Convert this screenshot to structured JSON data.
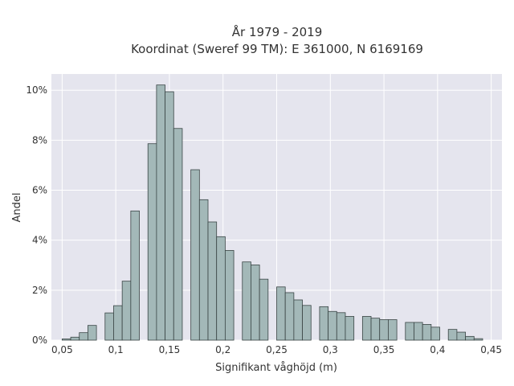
{
  "chart_data": {
    "type": "bar",
    "title": [
      "År 1979 - 2019",
      "Koordinat (Sweref 99 TM): E 361000, N 6169169"
    ],
    "xlabel": "Signifikant våghöjd (m)",
    "ylabel": "Andel",
    "xlim": [
      0.04,
      0.46
    ],
    "ylim": [
      0,
      0.1065
    ],
    "bin_width": 0.008,
    "x_ticks": [
      0.05,
      0.1,
      0.15,
      0.2,
      0.25,
      0.3,
      0.35,
      0.4,
      0.45
    ],
    "x_tick_labels": [
      "0,05",
      "0,1",
      "0,15",
      "0,2",
      "0,25",
      "0,3",
      "0,35",
      "0,4",
      "0,45"
    ],
    "y_ticks": [
      0,
      0.02,
      0.04,
      0.06,
      0.08,
      0.1
    ],
    "y_tick_labels": [
      "0%",
      "2%",
      "4%",
      "6%",
      "8%",
      "10%"
    ],
    "grid": true,
    "colors": {
      "bar_fill": "#a3b8b8",
      "bar_edge": "#3a4545",
      "plot_bg": "#e5e5ee",
      "grid": "#ffffff"
    },
    "bins": [
      {
        "x": 0.054,
        "y": 0.0005
      },
      {
        "x": 0.062,
        "y": 0.0012
      },
      {
        "x": 0.07,
        "y": 0.003
      },
      {
        "x": 0.078,
        "y": 0.0059
      },
      {
        "x": 0.094,
        "y": 0.0109
      },
      {
        "x": 0.102,
        "y": 0.0138
      },
      {
        "x": 0.11,
        "y": 0.0236
      },
      {
        "x": 0.118,
        "y": 0.0517
      },
      {
        "x": 0.134,
        "y": 0.0786
      },
      {
        "x": 0.142,
        "y": 0.1021
      },
      {
        "x": 0.15,
        "y": 0.0994
      },
      {
        "x": 0.158,
        "y": 0.0847
      },
      {
        "x": 0.174,
        "y": 0.0682
      },
      {
        "x": 0.182,
        "y": 0.0562
      },
      {
        "x": 0.19,
        "y": 0.0473
      },
      {
        "x": 0.198,
        "y": 0.0414
      },
      {
        "x": 0.206,
        "y": 0.0359
      },
      {
        "x": 0.222,
        "y": 0.0313
      },
      {
        "x": 0.23,
        "y": 0.0301
      },
      {
        "x": 0.238,
        "y": 0.0244
      },
      {
        "x": 0.254,
        "y": 0.0213
      },
      {
        "x": 0.262,
        "y": 0.019
      },
      {
        "x": 0.27,
        "y": 0.0161
      },
      {
        "x": 0.278,
        "y": 0.0139
      },
      {
        "x": 0.294,
        "y": 0.0134
      },
      {
        "x": 0.302,
        "y": 0.0115
      },
      {
        "x": 0.31,
        "y": 0.011
      },
      {
        "x": 0.318,
        "y": 0.0095
      },
      {
        "x": 0.334,
        "y": 0.0095
      },
      {
        "x": 0.342,
        "y": 0.0088
      },
      {
        "x": 0.35,
        "y": 0.0082
      },
      {
        "x": 0.358,
        "y": 0.0082
      },
      {
        "x": 0.374,
        "y": 0.0071
      },
      {
        "x": 0.382,
        "y": 0.0071
      },
      {
        "x": 0.39,
        "y": 0.0063
      },
      {
        "x": 0.398,
        "y": 0.0052
      },
      {
        "x": 0.414,
        "y": 0.0043
      },
      {
        "x": 0.422,
        "y": 0.0032
      },
      {
        "x": 0.43,
        "y": 0.0015
      },
      {
        "x": 0.438,
        "y": 0.0006
      }
    ]
  }
}
